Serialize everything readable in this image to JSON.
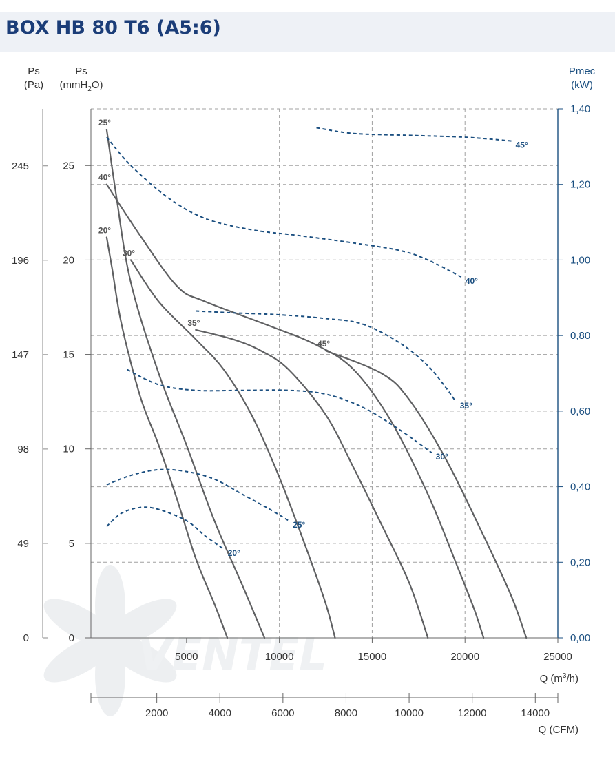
{
  "chart_data": {
    "type": "line",
    "title": "BOX HB 80 T6 (A5:6)",
    "left_axis_pa": {
      "label_line1": "Ps",
      "label_line2": "(Pa)",
      "ticks": [
        "0",
        "49",
        "98",
        "147",
        "196",
        "245"
      ]
    },
    "left_axis_mm": {
      "label_line1": "Ps",
      "label_line2_pre": "(mmH",
      "label_line2_sub": "2",
      "label_line2_post": "O)",
      "ticks": [
        "0",
        "5",
        "10",
        "15",
        "20",
        "25"
      ],
      "ylim": [
        0,
        28
      ]
    },
    "right_axis": {
      "label_line1": "Pmec",
      "label_line2": "(kW)",
      "ticks": [
        "0,00",
        "0,20",
        "0,40",
        "0,60",
        "0,80",
        "1,00",
        "1,20",
        "1,40"
      ],
      "ylim": [
        0,
        1.4
      ]
    },
    "x_axis": {
      "label_pre": "Q (m",
      "label_sup": "3",
      "label_post": "/h)",
      "ticks": [
        "5000",
        "10000",
        "15000",
        "20000",
        "25000"
      ],
      "xlim": [
        -150,
        25000
      ]
    },
    "x_axis_cfm": {
      "label": "Q (CFM)",
      "ticks": [
        "2000",
        "4000",
        "6000",
        "8000",
        "10000",
        "12000",
        "14000"
      ]
    },
    "grid": true,
    "pressure_series": [
      {
        "name": "20°",
        "points": [
          [
            700,
            21.2
          ],
          [
            1000,
            19.5
          ],
          [
            1500,
            16.6
          ],
          [
            2500,
            12.8
          ],
          [
            3500,
            10.2
          ],
          [
            4500,
            7.3
          ],
          [
            5500,
            4.2
          ],
          [
            6500,
            1.8
          ],
          [
            7200,
            0
          ]
        ]
      },
      {
        "name": "25°",
        "points": [
          [
            700,
            26.9
          ],
          [
            1200,
            23.5
          ],
          [
            2000,
            18.8
          ],
          [
            3500,
            14.0
          ],
          [
            5000,
            10.2
          ],
          [
            6500,
            6.2
          ],
          [
            8000,
            2.8
          ],
          [
            9200,
            0
          ]
        ]
      },
      {
        "name": "30°",
        "points": [
          [
            2000,
            20.0
          ],
          [
            3500,
            17.8
          ],
          [
            5500,
            15.8
          ],
          [
            7000,
            14.2
          ],
          [
            8500,
            11.8
          ],
          [
            10000,
            8.5
          ],
          [
            11500,
            4.6
          ],
          [
            12500,
            1.8
          ],
          [
            13000,
            0
          ]
        ]
      },
      {
        "name": "35°",
        "points": [
          [
            5500,
            16.3
          ],
          [
            7500,
            15.8
          ],
          [
            9000,
            15.2
          ],
          [
            10500,
            14.2
          ],
          [
            12500,
            11.8
          ],
          [
            14000,
            9.0
          ],
          [
            15500,
            6.0
          ],
          [
            17000,
            2.9
          ],
          [
            18000,
            0
          ]
        ]
      },
      {
        "name": "40°",
        "points": [
          [
            700,
            24.0
          ],
          [
            2500,
            21.3
          ],
          [
            4500,
            18.6
          ],
          [
            6000,
            17.8
          ],
          [
            9500,
            16.5
          ],
          [
            12000,
            15.5
          ],
          [
            14000,
            14.2
          ],
          [
            16000,
            11.5
          ],
          [
            18000,
            7.6
          ],
          [
            19500,
            4.0
          ],
          [
            20500,
            1.5
          ],
          [
            21000,
            0
          ]
        ]
      },
      {
        "name": "45°",
        "points": [
          [
            12500,
            15.2
          ],
          [
            15500,
            14.0
          ],
          [
            17000,
            12.6
          ],
          [
            19000,
            9.4
          ],
          [
            21000,
            5.4
          ],
          [
            22500,
            2.2
          ],
          [
            23300,
            0
          ]
        ]
      }
    ],
    "power_series": [
      {
        "name": "20°",
        "points": [
          [
            700,
            0.295
          ],
          [
            1500,
            0.33
          ],
          [
            2500,
            0.345
          ],
          [
            3500,
            0.34
          ],
          [
            5000,
            0.31
          ],
          [
            6000,
            0.27
          ],
          [
            7000,
            0.235
          ]
        ]
      },
      {
        "name": "25°",
        "points": [
          [
            700,
            0.405
          ],
          [
            2000,
            0.43
          ],
          [
            3500,
            0.445
          ],
          [
            5000,
            0.44
          ],
          [
            6500,
            0.42
          ],
          [
            8000,
            0.38
          ],
          [
            9500,
            0.34
          ],
          [
            10500,
            0.31
          ]
        ]
      },
      {
        "name": "30°",
        "points": [
          [
            1800,
            0.71
          ],
          [
            3500,
            0.67
          ],
          [
            5500,
            0.655
          ],
          [
            8000,
            0.655
          ],
          [
            10500,
            0.655
          ],
          [
            12500,
            0.645
          ],
          [
            14500,
            0.61
          ],
          [
            16500,
            0.55
          ],
          [
            18200,
            0.49
          ]
        ]
      },
      {
        "name": "35°",
        "points": [
          [
            5500,
            0.865
          ],
          [
            7500,
            0.86
          ],
          [
            10000,
            0.855
          ],
          [
            12500,
            0.845
          ],
          [
            14500,
            0.83
          ],
          [
            16500,
            0.78
          ],
          [
            18000,
            0.72
          ],
          [
            19000,
            0.66
          ],
          [
            19500,
            0.625
          ]
        ]
      },
      {
        "name": "40°",
        "points": [
          [
            700,
            1.325
          ],
          [
            2000,
            1.25
          ],
          [
            4000,
            1.165
          ],
          [
            6000,
            1.11
          ],
          [
            8500,
            1.08
          ],
          [
            11000,
            1.065
          ],
          [
            14000,
            1.045
          ],
          [
            16500,
            1.025
          ],
          [
            18000,
            1.0
          ],
          [
            19800,
            0.955
          ]
        ]
      },
      {
        "name": "45°",
        "points": [
          [
            12000,
            1.35
          ],
          [
            14000,
            1.335
          ],
          [
            17000,
            1.33
          ],
          [
            20000,
            1.325
          ],
          [
            22500,
            1.315
          ]
        ]
      }
    ],
    "colors": {
      "pressure": "#5f6062",
      "power": "#1b4f80",
      "grid": "#a0a0a0",
      "title": "#1b3d78",
      "title_bg": "#eef1f6"
    }
  },
  "watermark": {
    "text": "VENTEL"
  }
}
